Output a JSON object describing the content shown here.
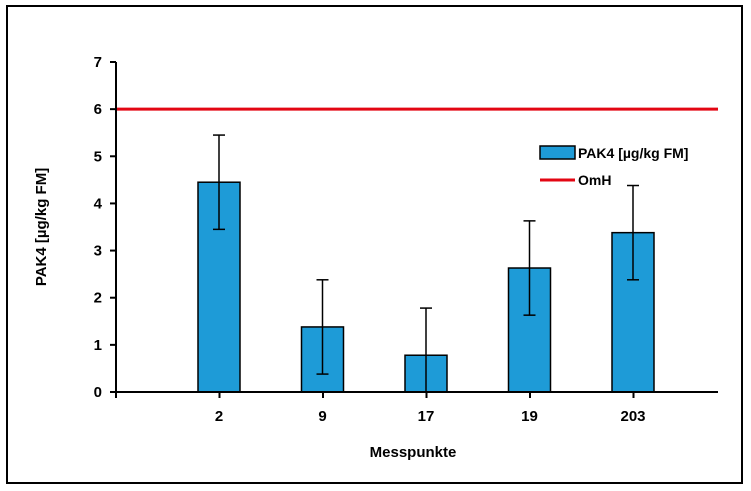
{
  "chart_data": {
    "type": "bar",
    "categories": [
      "2",
      "9",
      "17",
      "19",
      "203"
    ],
    "series": [
      {
        "name": "PAK4 [µg/kg FM]",
        "values": [
          4.45,
          1.38,
          0.78,
          2.63,
          3.38
        ],
        "errors": [
          1.0,
          1.0,
          1.0,
          1.0,
          1.0
        ],
        "color": "#1e9bd7"
      }
    ],
    "reference_line": {
      "name": "OmH",
      "value": 6,
      "color": "#e30613"
    },
    "xlabel": "Messpunkte",
    "ylabel": "PAK4 [µg/kg FM]",
    "ylim": [
      0,
      7
    ],
    "yticks": [
      "0",
      "1",
      "2",
      "3",
      "4",
      "5",
      "6",
      "7"
    ],
    "grid": false,
    "legend_position": "right"
  }
}
